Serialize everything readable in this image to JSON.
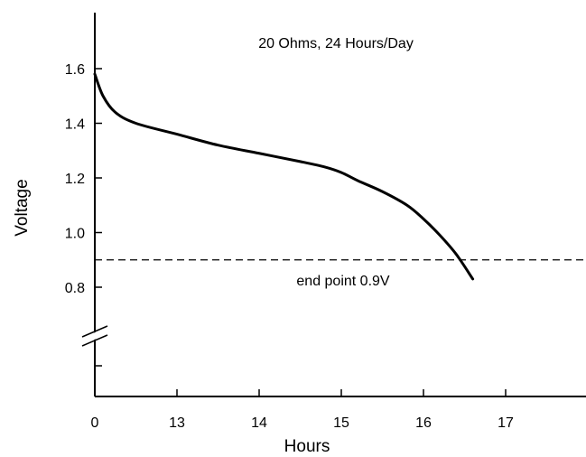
{
  "chart_data": {
    "type": "line",
    "title": "20 Ohms, 24 Hours/Day",
    "xlabel": "Hours",
    "ylabel": "Voltage",
    "x_ticks": [
      "0",
      "13",
      "14",
      "15",
      "16",
      "17"
    ],
    "x_tick_values": [
      12,
      13,
      14,
      15,
      16,
      17
    ],
    "y_ticks": [
      "0.8",
      "1.0",
      "1.2",
      "1.4",
      "1.6"
    ],
    "y_tick_values": [
      0.8,
      1.0,
      1.2,
      1.4,
      1.6
    ],
    "xlim": [
      12,
      17.8
    ],
    "ylim": [
      0.8,
      1.6
    ],
    "axis_breaks": [
      "x",
      "y"
    ],
    "grid": false,
    "series": [
      {
        "x": [
          12.0,
          12.1,
          12.25,
          12.5,
          13.0,
          13.5,
          14.0,
          14.5,
          14.8,
          15.0,
          15.2,
          15.5,
          15.8,
          16.0,
          16.2,
          16.4,
          16.6
        ],
        "y": [
          1.58,
          1.5,
          1.44,
          1.4,
          1.36,
          1.32,
          1.29,
          1.26,
          1.24,
          1.22,
          1.19,
          1.15,
          1.1,
          1.05,
          0.99,
          0.92,
          0.83
        ]
      }
    ],
    "reference_line": {
      "y": 0.9,
      "label": "end point 0.9V"
    }
  }
}
